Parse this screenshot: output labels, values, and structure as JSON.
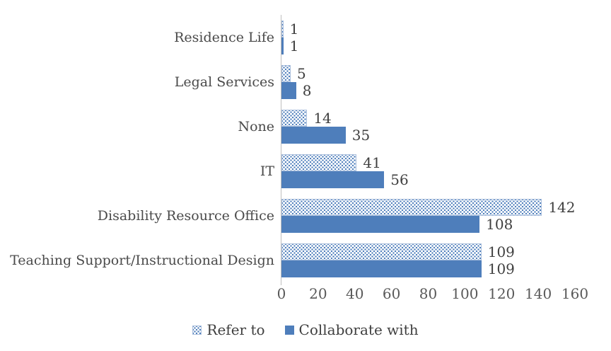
{
  "chart_data": {
    "type": "bar",
    "orientation": "horizontal",
    "title": "",
    "categories": [
      "Residence Life",
      "Legal Services",
      "None",
      "IT",
      "Disability Resource Office",
      "Teaching Support/Instructional Design"
    ],
    "series": [
      {
        "name": "Refer to",
        "style": "dotted",
        "values": [
          1,
          5,
          14,
          41,
          142,
          109
        ]
      },
      {
        "name": "Collaborate with",
        "style": "solid",
        "values": [
          1,
          8,
          35,
          56,
          108,
          109
        ]
      }
    ],
    "x_ticks": [
      0,
      20,
      40,
      60,
      80,
      100,
      120,
      140,
      160
    ],
    "xlim": [
      0,
      160
    ],
    "grid": false,
    "legend_position": "bottom",
    "data_labels": "outside-end",
    "colors": {
      "series_blue": "#4e7ebb",
      "pattern_border": "#a9bedc",
      "axis_line": "#bfbfbf",
      "category_text": "#4a4a4a",
      "value_text": "#3f3f3f",
      "tick_text": "#595959"
    }
  }
}
